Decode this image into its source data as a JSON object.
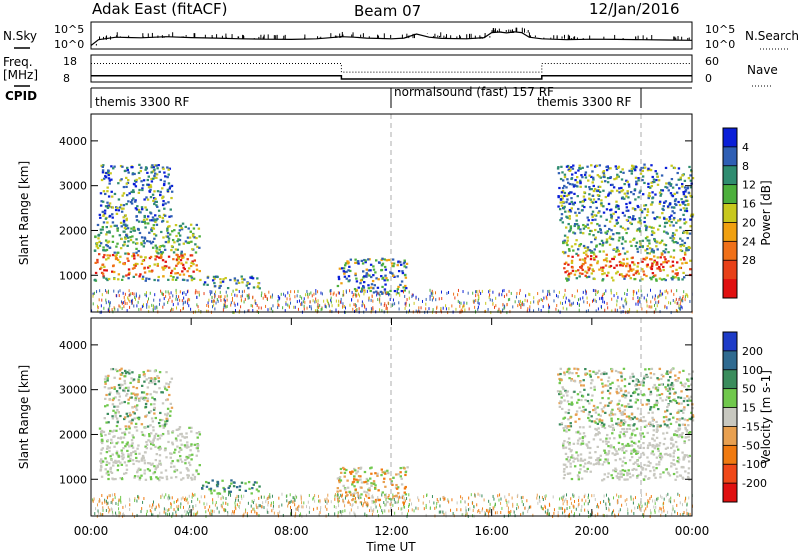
{
  "header": {
    "station": "Adak East (fitACF)",
    "beam": "Beam 07",
    "date": "12/Jan/2016"
  },
  "left_labels": {
    "nsky": "N.Sky",
    "freq": "Freq.",
    "mhz": "[MHz]",
    "cpid": "CPID"
  },
  "right_labels": {
    "nsearch": "N.Search",
    "nave": "Nave"
  },
  "nsky_ticks": [
    "10^5",
    "10^0"
  ],
  "nsearch_ticks": [
    "10^5",
    "10^0"
  ],
  "freq_ticks": [
    "18",
    "8"
  ],
  "nave_ticks": [
    "60",
    "0"
  ],
  "cpid_segments": [
    {
      "label": "themis 3300 RF",
      "start_hour": 0
    },
    {
      "label": "normalsound (fast) 157 RF",
      "start_hour": 12
    },
    {
      "label": "themis 3300 RF",
      "start_hour": 21.5
    }
  ],
  "chart_data": [
    {
      "type": "line",
      "name": "noise-panel",
      "xlim": [
        0,
        24
      ],
      "series": [
        {
          "name": "N.Sky",
          "axis": "left",
          "scale": "log",
          "ylim": [
            1,
            100000
          ],
          "x": [
            0,
            0.3,
            1,
            2,
            3,
            4,
            5,
            6,
            7,
            8,
            9,
            9.5,
            10,
            10.5,
            11,
            12,
            12.5,
            13,
            13.5,
            14,
            15,
            15.7,
            16,
            16.3,
            16.6,
            16.9,
            17.2,
            17.5,
            18,
            19,
            20,
            21,
            22,
            23,
            24
          ],
          "y": [
            3,
            40,
            120,
            90,
            150,
            100,
            80,
            60,
            50,
            45,
            60,
            90,
            150,
            120,
            80,
            60,
            80,
            500,
            120,
            70,
            60,
            100,
            900,
            1200,
            800,
            1300,
            900,
            120,
            60,
            40,
            50,
            45,
            40,
            35,
            30
          ]
        }
      ],
      "yticks": [
        "10^5",
        "10^0"
      ]
    },
    {
      "type": "line",
      "name": "frequency-panel",
      "xlim": [
        0,
        24
      ],
      "series": [
        {
          "name": "Freq.",
          "axis": "left",
          "unit": "MHz",
          "ylim": [
            8,
            18
          ],
          "x": [
            0,
            10,
            10,
            18,
            18,
            24
          ],
          "y": [
            10.3,
            10.3,
            9.1,
            9.1,
            10.3,
            10.3
          ]
        },
        {
          "name": "Nave",
          "axis": "right",
          "ylim": [
            0,
            60
          ],
          "x": [
            0,
            10,
            10,
            18,
            18,
            24
          ],
          "y": [
            41,
            41,
            22,
            22,
            41,
            41
          ]
        }
      ],
      "yticks_left": [
        "18",
        "8"
      ],
      "yticks_right": [
        "60",
        "0"
      ]
    },
    {
      "type": "heatmap",
      "name": "power",
      "xlabel": "",
      "ylabel": "Slant Range [km]",
      "xlim": [
        0,
        24
      ],
      "ylim": [
        180,
        4600
      ],
      "yticks": [
        1000,
        2000,
        3000,
        4000
      ],
      "colorbar": {
        "label": "Power [dB]",
        "ticks": [
          "4",
          "8",
          "12",
          "16",
          "20",
          "24",
          "28"
        ],
        "colors": [
          "#0a1fd8",
          "#2f5fb4",
          "#2f8c70",
          "#4caf3c",
          "#c8c81e",
          "#f0a010",
          "#f07018",
          "#e84018",
          "#e01010"
        ]
      },
      "scatter_regions": [
        {
          "hours": [
            0.1,
            4.3
          ],
          "range_km": [
            900,
            2200
          ],
          "dominant": "high-power-core",
          "core_km": [
            1000,
            1500
          ]
        },
        {
          "hours": [
            0.3,
            3.2
          ],
          "range_km": [
            2200,
            3500
          ],
          "dominant": "low-power"
        },
        {
          "hours": [
            4.3,
            6.7
          ],
          "range_km": [
            700,
            1000
          ],
          "dominant": "low-power"
        },
        {
          "hours": [
            9.8,
            12.6
          ],
          "range_km": [
            600,
            1400
          ],
          "dominant": "medium-power"
        },
        {
          "hours": [
            18.8,
            23.9
          ],
          "range_km": [
            900,
            2200
          ],
          "dominant": "high-power-core",
          "core_km": [
            1000,
            1500
          ]
        },
        {
          "hours": [
            18.6,
            24
          ],
          "range_km": [
            2200,
            3500
          ],
          "dominant": "low-power"
        }
      ],
      "ground_band_km": [
        200,
        700
      ]
    },
    {
      "type": "heatmap",
      "name": "velocity",
      "xlabel": "Time UT",
      "ylabel": "Slant Range [km]",
      "xlim": [
        0,
        24
      ],
      "ylim": [
        180,
        4600
      ],
      "yticks": [
        1000,
        2000,
        3000,
        4000
      ],
      "xticks": [
        "00:00",
        "04:00",
        "08:00",
        "12:00",
        "16:00",
        "20:00",
        "00:00"
      ],
      "colorbar": {
        "label": "Velocity [m s-1]",
        "ticks": [
          "200",
          "100",
          "50",
          "15",
          "-15",
          "-50",
          "-100",
          "-200"
        ],
        "colors": [
          "#1e3cc8",
          "#2f6a90",
          "#3a8c5c",
          "#70c84c",
          "#c8c8c0",
          "#e8a050",
          "#f07a10",
          "#f04818",
          "#e01010"
        ]
      },
      "scatter_regions": [
        {
          "hours": [
            0.3,
            4.3
          ],
          "range_km": [
            1000,
            2200
          ],
          "dominant": "near-zero"
        },
        {
          "hours": [
            0.5,
            3.2
          ],
          "range_km": [
            2200,
            3500
          ],
          "dominant": "near-zero-mixed"
        },
        {
          "hours": [
            4.3,
            6.7
          ],
          "range_km": [
            700,
            1000
          ],
          "dominant": "positive"
        },
        {
          "hours": [
            9.8,
            12.6
          ],
          "range_km": [
            500,
            1300
          ],
          "dominant": "mixed"
        },
        {
          "hours": [
            18.8,
            23.9
          ],
          "range_km": [
            1000,
            2200
          ],
          "dominant": "near-zero"
        },
        {
          "hours": [
            18.6,
            24
          ],
          "range_km": [
            2200,
            3500
          ],
          "dominant": "near-zero-mixed"
        }
      ],
      "ground_band_km": [
        200,
        700
      ]
    }
  ]
}
